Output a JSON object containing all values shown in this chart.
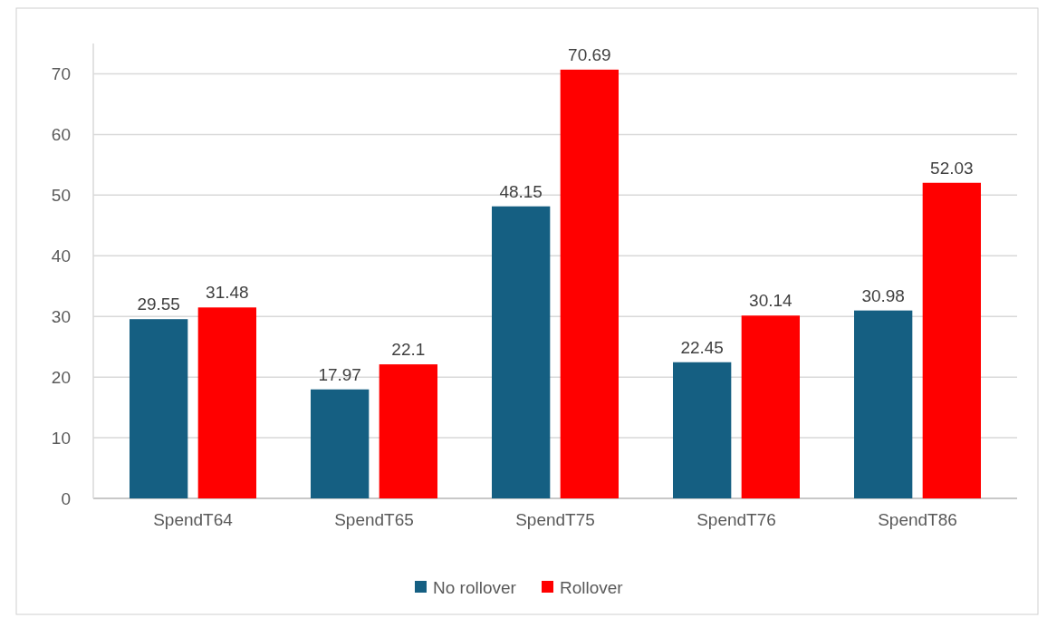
{
  "chart_data": {
    "type": "bar",
    "categories": [
      "SpendT64",
      "SpendT65",
      "SpendT75",
      "SpendT76",
      "SpendT86"
    ],
    "series": [
      {
        "name": "No rollover",
        "color": "#155f82",
        "values": [
          29.55,
          17.97,
          48.15,
          22.45,
          30.98
        ]
      },
      {
        "name": "Rollover",
        "color": "#ff0000",
        "values": [
          31.48,
          22.1,
          70.69,
          30.14,
          52.03
        ]
      }
    ],
    "ylim": [
      0,
      75
    ],
    "yticks": [
      0,
      10,
      20,
      30,
      40,
      50,
      60,
      70
    ],
    "grid": "y",
    "legend": "bottom",
    "data_labels": true
  }
}
